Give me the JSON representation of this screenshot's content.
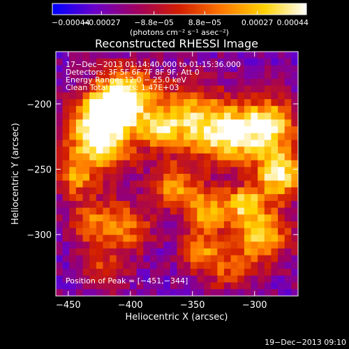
{
  "chart_data": {
    "type": "heatmap",
    "title": "Reconstructed RHESSI Image",
    "xlabel": "Heliocentric X (arcsec)",
    "ylabel": "Heliocentric Y (arcsec)",
    "xlim": [
      -460,
      -265
    ],
    "ylim": [
      -347,
      -160
    ],
    "x_ticks": [
      -450,
      -400,
      -350,
      -300
    ],
    "y_ticks": [
      -200,
      -250,
      -300
    ],
    "x_tick_labels": [
      "−450",
      "−400",
      "−350",
      "−300"
    ],
    "y_tick_labels": [
      "−200",
      "−250",
      "−300"
    ],
    "colorbar": {
      "range": [
        -0.00044,
        0.00044
      ],
      "ticks": [
        -0.00044,
        -0.00027,
        -8.8e-05,
        8.8e-05,
        0.00027,
        0.00044
      ],
      "tick_labels": [
        "−0.00044",
        "−0.00027",
        "−8.8e−05",
        "8.8e−05",
        "0.00027",
        "0.00044"
      ],
      "units": "(photons cm⁻² s⁻¹ asec⁻²)",
      "colors": [
        "#0000ff",
        "#6a00c8",
        "#a00060",
        "#d21e00",
        "#ff7800",
        "#ffd200",
        "#ffffff"
      ]
    },
    "annotations": [
      "17−Dec−2013 01:14:40.000 to 01:15:36.000",
      "Detectors: 3F 5F 6F 7F 8F 9F, Att 0",
      "Energy Range: 12.0 − 25.0 keV",
      "Clean    Total counts: 1.47E+03"
    ],
    "peak": {
      "label": "Position of Peak = [−451,−344]",
      "x": -451,
      "y": -344
    },
    "grid": false,
    "legend": "colorbar-top"
  },
  "timestamp": "19−Dec−2013 09:10"
}
